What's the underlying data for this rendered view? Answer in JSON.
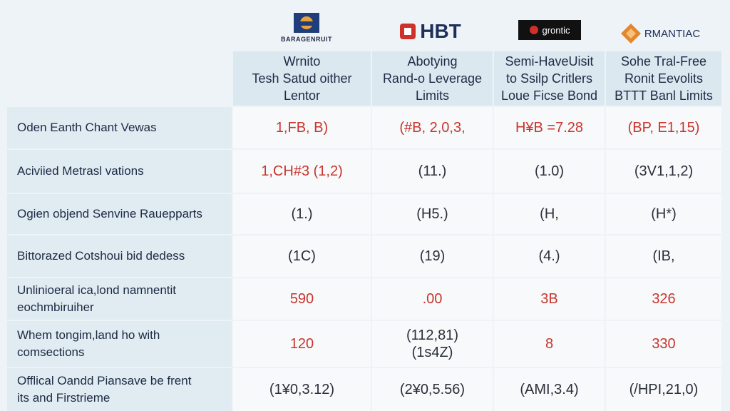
{
  "logos": [
    "BARAGENRUIT",
    "HBT",
    "grontic",
    "RMANTIAC"
  ],
  "table": {
    "header": [
      "Wrnito\nTesh Satud oither\nLentor",
      "Abotying\nRand-o Leverage\nLimits",
      "Semi-HaveUisit\nto Ssilp Critlers\nLoue Ficse Bond",
      "Sohe Tral-Free\nRonit Eevolits\nBTTT Banl Limits"
    ],
    "rows": [
      [
        "Oden Eanth Chant Vewas",
        "1,FB, B)",
        "(#B, 2,0,3,",
        "H¥B =7.28",
        "(BP, E1,15)"
      ],
      [
        "Aciviied Metrasl vations",
        "1,CH#3 (1,2)",
        "(11.)",
        "(1.0)",
        "(3V1,1,2)"
      ],
      [
        "Ogien objend Senvine Rauepparts",
        "(1.)",
        "(H5.)",
        "(H,",
        "(H*)"
      ],
      [
        "Bittorazed Cotshoui bid dedess",
        "(1C)",
        "(19)",
        "(4.)",
        "(IB,"
      ],
      [
        "Unlinioeral ica,lond namnentit\neochmbiruiher",
        "590",
        ".00",
        "3B",
        "326"
      ],
      [
        "Whem tongim,land ho with\ncomsections",
        "120",
        "(112,81)\n(1s4Z)",
        "8",
        "330"
      ],
      [
        "Offlical Oandd Piansave be frent\nits and Firstrieme",
        "(1¥0,3.12)",
        "(2¥0,5.56)",
        "(AMI,3.4)",
        "(/HPI,21,0)"
      ]
    ]
  }
}
